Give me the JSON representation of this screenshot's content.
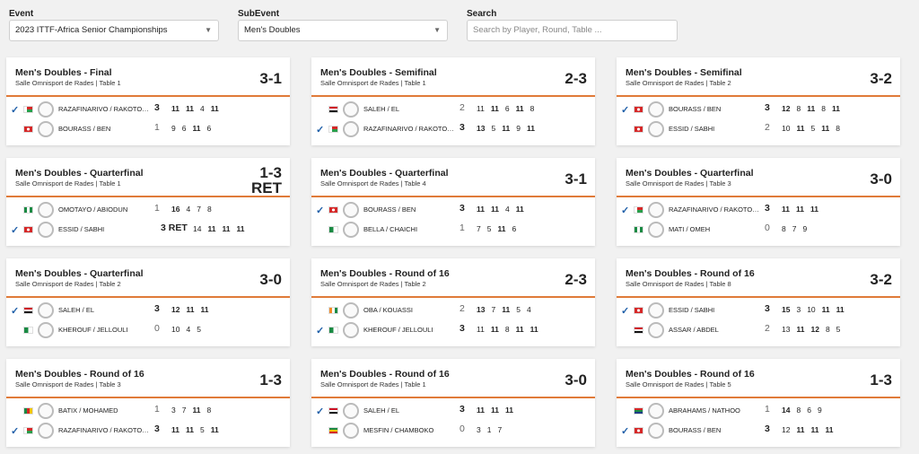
{
  "filters": {
    "event_label": "Event",
    "event_value": "2023 ITTF-Africa Senior Championships",
    "subevent_label": "SubEvent",
    "subevent_value": "Men's Doubles",
    "search_label": "Search",
    "search_placeholder": "Search by Player, Round, Table ..."
  },
  "colors": {
    "accent": "#e07b39",
    "check": "#1f5fa8"
  },
  "matches": [
    {
      "title": "Men's Doubles - Final",
      "venue": "Salle Omnisport de Rades | Table 1",
      "score": "3-1",
      "p1": {
        "name": "RAZAFINARIVO / RAKOTOARIMANANA",
        "flag": "MAD",
        "winner": true,
        "games": "3",
        "sets": [
          "11",
          "11",
          "4",
          "11"
        ],
        "wins": [
          true,
          true,
          false,
          true
        ]
      },
      "p2": {
        "name": "BOURASS / BEN",
        "flag": "TUN",
        "winner": false,
        "games": "1",
        "sets": [
          "9",
          "6",
          "11",
          "6"
        ],
        "wins": [
          false,
          false,
          true,
          false
        ]
      }
    },
    {
      "title": "Men's Doubles - Semifinal",
      "venue": "Salle Omnisport de Rades | Table 1",
      "score": "2-3",
      "p1": {
        "name": "SALEH / EL",
        "flag": "EGY",
        "winner": false,
        "games": "2",
        "sets": [
          "11",
          "11",
          "6",
          "11",
          "8"
        ],
        "wins": [
          false,
          true,
          false,
          true,
          false
        ]
      },
      "p2": {
        "name": "RAZAFINARIVO / RAKOTOARIMANANA",
        "flag": "MAD",
        "winner": true,
        "games": "3",
        "sets": [
          "13",
          "5",
          "11",
          "9",
          "11"
        ],
        "wins": [
          true,
          false,
          true,
          false,
          true
        ]
      }
    },
    {
      "title": "Men's Doubles - Semifinal",
      "venue": "Salle Omnisport de Rades | Table 2",
      "score": "3-2",
      "p1": {
        "name": "BOURASS / BEN",
        "flag": "TUN",
        "winner": true,
        "games": "3",
        "sets": [
          "12",
          "8",
          "11",
          "8",
          "11"
        ],
        "wins": [
          true,
          false,
          true,
          false,
          true
        ]
      },
      "p2": {
        "name": "ESSID / SABHI",
        "flag": "TUN",
        "winner": false,
        "games": "2",
        "sets": [
          "10",
          "11",
          "5",
          "11",
          "8"
        ],
        "wins": [
          false,
          true,
          false,
          true,
          false
        ]
      }
    },
    {
      "title": "Men's Doubles - Quarterfinal",
      "venue": "Salle Omnisport de Rades | Table 1",
      "score": "1-3 RET",
      "p1": {
        "name": "OMOTAYO / ABIODUN",
        "flag": "NGR",
        "winner": false,
        "games": "1",
        "sets": [
          "16",
          "4",
          "7",
          "8"
        ],
        "wins": [
          true,
          false,
          false,
          false
        ]
      },
      "p2": {
        "name": "ESSID / SABHI",
        "flag": "TUN",
        "winner": true,
        "games": "3 RET",
        "sets": [
          "14",
          "11",
          "11",
          "11"
        ],
        "wins": [
          false,
          true,
          true,
          true
        ]
      }
    },
    {
      "title": "Men's Doubles - Quarterfinal",
      "venue": "Salle Omnisport de Rades | Table 4",
      "score": "3-1",
      "p1": {
        "name": "BOURASS / BEN",
        "flag": "TUN",
        "winner": true,
        "games": "3",
        "sets": [
          "11",
          "11",
          "4",
          "11"
        ],
        "wins": [
          true,
          true,
          false,
          true
        ]
      },
      "p2": {
        "name": "BELLA / CHAICHI",
        "flag": "ALG",
        "winner": false,
        "games": "1",
        "sets": [
          "7",
          "5",
          "11",
          "6"
        ],
        "wins": [
          false,
          false,
          true,
          false
        ]
      }
    },
    {
      "title": "Men's Doubles - Quarterfinal",
      "venue": "Salle Omnisport de Rades | Table 3",
      "score": "3-0",
      "p1": {
        "name": "RAZAFINARIVO / RAKOTOARIMANANA",
        "flag": "MAD",
        "winner": true,
        "games": "3",
        "sets": [
          "11",
          "11",
          "11"
        ],
        "wins": [
          true,
          true,
          true
        ]
      },
      "p2": {
        "name": "MATI / OMEH",
        "flag": "NGR",
        "winner": false,
        "games": "0",
        "sets": [
          "8",
          "7",
          "9"
        ],
        "wins": [
          false,
          false,
          false
        ]
      }
    },
    {
      "title": "Men's Doubles - Quarterfinal",
      "venue": "Salle Omnisport de Rades | Table 2",
      "score": "3-0",
      "p1": {
        "name": "SALEH / EL",
        "flag": "EGY",
        "winner": true,
        "games": "3",
        "sets": [
          "12",
          "11",
          "11"
        ],
        "wins": [
          true,
          true,
          true
        ]
      },
      "p2": {
        "name": "KHEROUF / JELLOULI",
        "flag": "ALG",
        "winner": false,
        "games": "0",
        "sets": [
          "10",
          "4",
          "5"
        ],
        "wins": [
          false,
          false,
          false
        ]
      }
    },
    {
      "title": "Men's Doubles - Round of 16",
      "venue": "Salle Omnisport de Rades | Table 2",
      "score": "2-3",
      "p1": {
        "name": "OBA / KOUASSI",
        "flag": "CIV",
        "winner": false,
        "games": "2",
        "sets": [
          "13",
          "7",
          "11",
          "5",
          "4"
        ],
        "wins": [
          true,
          false,
          true,
          false,
          false
        ]
      },
      "p2": {
        "name": "KHEROUF / JELLOULI",
        "flag": "ALG",
        "winner": true,
        "games": "3",
        "sets": [
          "11",
          "11",
          "8",
          "11",
          "11"
        ],
        "wins": [
          false,
          true,
          false,
          true,
          true
        ]
      }
    },
    {
      "title": "Men's Doubles - Round of 16",
      "venue": "Salle Omnisport de Rades | Table 8",
      "score": "3-2",
      "p1": {
        "name": "ESSID / SABHI",
        "flag": "TUN",
        "winner": true,
        "games": "3",
        "sets": [
          "15",
          "3",
          "10",
          "11",
          "11"
        ],
        "wins": [
          true,
          false,
          false,
          true,
          true
        ]
      },
      "p2": {
        "name": "ASSAR / ABDEL",
        "flag": "EGY",
        "winner": false,
        "games": "2",
        "sets": [
          "13",
          "11",
          "12",
          "8",
          "5"
        ],
        "wins": [
          false,
          true,
          true,
          false,
          false
        ]
      }
    },
    {
      "title": "Men's Doubles - Round of 16",
      "venue": "Salle Omnisport de Rades | Table 3",
      "score": "1-3",
      "p1": {
        "name": "BATIX / MOHAMED",
        "flag": "CMR",
        "winner": false,
        "games": "1",
        "sets": [
          "3",
          "7",
          "11",
          "8"
        ],
        "wins": [
          false,
          false,
          true,
          false
        ]
      },
      "p2": {
        "name": "RAZAFINARIVO / RAKOTOARIMANANA",
        "flag": "MAD",
        "winner": true,
        "games": "3",
        "sets": [
          "11",
          "11",
          "5",
          "11"
        ],
        "wins": [
          true,
          true,
          false,
          true
        ]
      }
    },
    {
      "title": "Men's Doubles - Round of 16",
      "venue": "Salle Omnisport de Rades | Table 1",
      "score": "3-0",
      "p1": {
        "name": "SALEH / EL",
        "flag": "EGY",
        "winner": true,
        "games": "3",
        "sets": [
          "11",
          "11",
          "11"
        ],
        "wins": [
          true,
          true,
          true
        ]
      },
      "p2": {
        "name": "MESFIN / CHAMBOKO",
        "flag": "ETH",
        "winner": false,
        "games": "0",
        "sets": [
          "3",
          "1",
          "7"
        ],
        "wins": [
          false,
          false,
          false
        ]
      }
    },
    {
      "title": "Men's Doubles - Round of 16",
      "venue": "Salle Omnisport de Rades | Table 5",
      "score": "1-3",
      "p1": {
        "name": "ABRAHAMS / NATHOO",
        "flag": "RSA",
        "winner": false,
        "games": "1",
        "sets": [
          "14",
          "8",
          "6",
          "9"
        ],
        "wins": [
          true,
          false,
          false,
          false
        ]
      },
      "p2": {
        "name": "BOURASS / BEN",
        "flag": "TUN",
        "winner": true,
        "games": "3",
        "sets": [
          "12",
          "11",
          "11",
          "11"
        ],
        "wins": [
          false,
          true,
          true,
          true
        ]
      }
    }
  ]
}
